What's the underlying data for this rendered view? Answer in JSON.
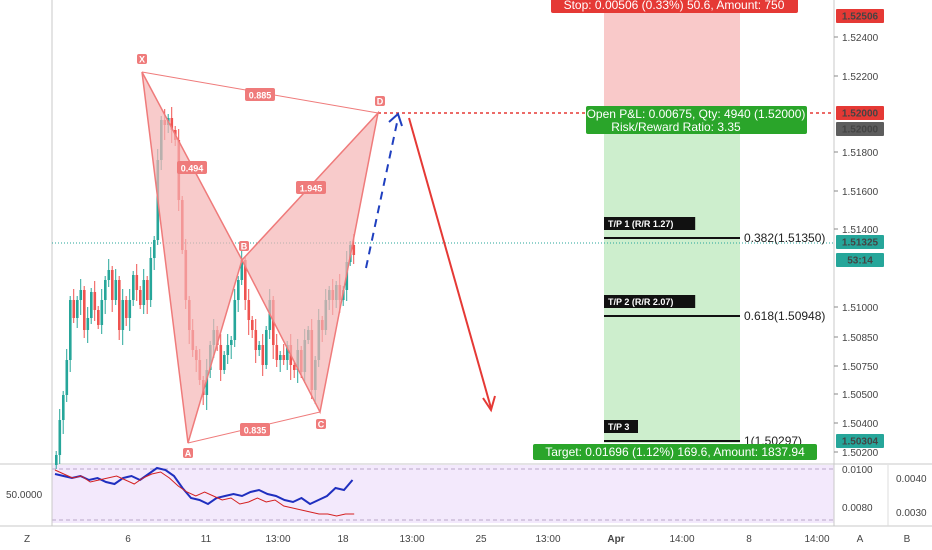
{
  "chart_data": {
    "type": "candlestick",
    "price_axis": {
      "ticks": [
        "1.52400",
        "1.52200",
        "1.51800",
        "1.51600",
        "1.51400",
        "1.51000",
        "1.50850",
        "1.50750",
        "1.50500",
        "1.50400",
        "1.50200"
      ],
      "ylim": [
        1.5018,
        1.5262
      ],
      "badges": [
        {
          "text": "1.52506",
          "bg": "#e53935",
          "fg": "#ffffff"
        },
        {
          "text": "1.52000",
          "bg": "#e53935",
          "fg": "#ffffff"
        },
        {
          "text": "1.52000",
          "bg": "#5d5d5d",
          "fg": "#ffffff"
        },
        {
          "text": "1.51325",
          "bg": "#26a69a",
          "fg": "#ffffff"
        },
        {
          "text": "53:14",
          "bg": "#26a69a",
          "fg": "#ffffff"
        },
        {
          "text": "1.50304",
          "bg": "#26a69a",
          "fg": "#ffffff"
        }
      ]
    },
    "rsi_axis": {
      "left_label": "50.0000",
      "upper_ticks": [
        "0.0100",
        "0.0080"
      ],
      "right_ticks": [
        "0.0040",
        "0.0030"
      ]
    },
    "time_axis": [
      "6",
      "11",
      "13:00",
      "18",
      "13:00",
      "25",
      "13:00",
      "Apr",
      "14:00",
      "8",
      "14:00"
    ],
    "bottom_buttons": [
      "Z",
      "A",
      "B"
    ],
    "pattern": {
      "points": [
        {
          "name": "X",
          "x": 142,
          "y": 72
        },
        {
          "name": "A",
          "x": 188,
          "y": 443
        },
        {
          "name": "B",
          "x": 242,
          "y": 260
        },
        {
          "name": "C",
          "x": 320,
          "y": 412
        },
        {
          "name": "D",
          "x": 378,
          "y": 113
        }
      ],
      "ratios": [
        "0.885",
        "0.494",
        "1.945",
        "0.835"
      ],
      "fill_color": "#f5b5b5",
      "line_color": "#ef7b7b"
    },
    "trade": {
      "stop_label": "Stop: 0.00506 (0.33%) 50.6, Amount: 750",
      "pnl_label": "Open P&L: 0.00675, Qty: 4940 (1.52000)",
      "rr_label": "Risk/Reward Ratio: 3.35",
      "target_label": "Target: 0.01696 (1.12%) 169.6, Amount: 1837.94",
      "stop_color": "#e53935",
      "target_color": "#2aa52a",
      "risk_zone_color": "#f9c9c9",
      "reward_zone_color": "#cdeecd"
    },
    "tp_levels": [
      {
        "tag": "T/P 1 (R/R 1.27)",
        "label": "0.382(1.51350)"
      },
      {
        "tag": "T/P 2 (R/R 2.07)",
        "label": "0.618(1.50948)"
      },
      {
        "tag": "T/P 3",
        "label": "1(1.50297)"
      }
    ]
  }
}
